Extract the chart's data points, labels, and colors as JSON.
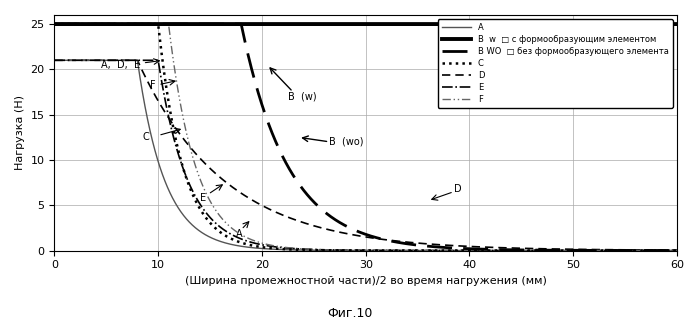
{
  "title": "Фиг.10",
  "xlabel": "(Ширина промежностной части)/2 во время нагружения (мм)",
  "ylabel": "Нагрузка (Н)",
  "xlim": [
    0,
    60
  ],
  "ylim": [
    0,
    26
  ],
  "yticks": [
    0,
    5,
    10,
    15,
    20,
    25
  ],
  "xticks": [
    0,
    10,
    20,
    30,
    40,
    50,
    60
  ],
  "background_color": "#ffffff",
  "grid_color": "#aaaaaa"
}
